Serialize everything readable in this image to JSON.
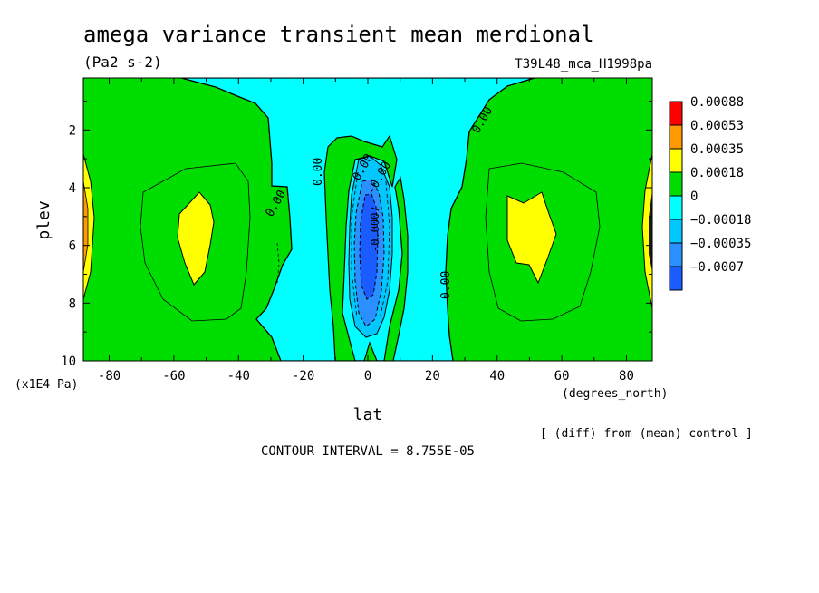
{
  "chart_data": {
    "type": "heatmap",
    "title": "amega variance transient mean merdional",
    "units": "(Pa2 s-2)",
    "experiment": "T39L48_mca_H1998pa",
    "xlabel": "lat",
    "xunit": "(degrees_north)",
    "ylabel": "plev",
    "yunit": "(x1E4 Pa)",
    "xlim": [
      -88,
      88
    ],
    "ylim": [
      10,
      0.2
    ],
    "xticks": [
      "-80",
      "-60",
      "-40",
      "-20",
      "0",
      "20",
      "40",
      "60",
      "80"
    ],
    "yticks": [
      "2",
      "4",
      "6",
      "8",
      "10"
    ],
    "legend_levels": [
      "0.00088",
      "0.00053",
      "0.00035",
      "0.00018",
      "0",
      "−0.00018",
      "−0.00035",
      "−0.0007"
    ],
    "legend_colors": [
      "#ff0000",
      "#ff9900",
      "#ffff00",
      "#00dd00",
      "#00ffff",
      "#00c8ff",
      "#2a8fff",
      "#1a5cff"
    ],
    "contour_labels": [
      "0.00",
      "0.00",
      "0.00",
      "0.00",
      "0.00",
      "-0.00",
      "-0.0007"
    ],
    "contour_interval": "CONTOUR INTERVAL = 8.755E-05",
    "note": "[ (diff) from (mean) control ]",
    "regions": [
      {
        "kind": "min",
        "lat": 0,
        "plev": 6.0,
        "value": -0.0007
      },
      {
        "kind": "negative",
        "lat": 0,
        "plev": 5.5,
        "value": -0.00035
      },
      {
        "kind": "max",
        "lat": -55,
        "plev": 5.4,
        "value": 0.00035
      },
      {
        "kind": "max",
        "lat": 50,
        "plev": 5.4,
        "value": 0.00035
      }
    ]
  }
}
